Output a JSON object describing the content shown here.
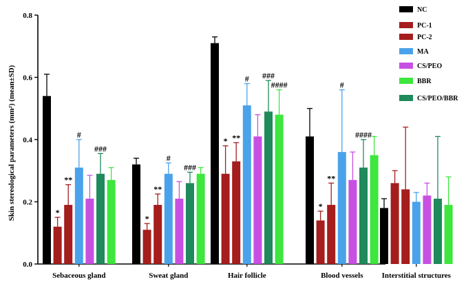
{
  "chart_data": {
    "type": "bar",
    "title": "",
    "xlabel": "",
    "ylabel": "Skin stereological parameters (mm²) (mean±SD)",
    "ylim": [
      0,
      0.8
    ],
    "yticks": [
      "0.0",
      "0.2",
      "0.4",
      "0.6",
      "0.8"
    ],
    "categories": [
      "Sebaceous gland",
      "Sweat gland",
      "Hair follicle",
      "Blood vessels",
      "Interstitial structures"
    ],
    "series": [
      {
        "name": "NC",
        "color": "#000000",
        "values": [
          0.54,
          0.32,
          0.71,
          0.41,
          0.18
        ],
        "errors": [
          0.07,
          0.02,
          0.02,
          0.09,
          0.03
        ],
        "annotations": [
          "",
          "",
          "",
          "",
          ""
        ]
      },
      {
        "name": "PC-1",
        "color": "#a51d1d",
        "values": [
          0.12,
          0.11,
          0.29,
          0.14,
          0.26
        ],
        "errors": [
          0.03,
          0.02,
          0.09,
          0.03,
          0.04
        ],
        "annotations": [
          "*",
          "*",
          "*",
          "*",
          ""
        ]
      },
      {
        "name": "PC-2",
        "color": "#a51d1d",
        "values": [
          0.19,
          0.19,
          0.33,
          0.19,
          0.24
        ],
        "errors": [
          0.065,
          0.035,
          0.06,
          0.07,
          0.2
        ],
        "annotations": [
          "**",
          "**",
          "**",
          "**",
          ""
        ]
      },
      {
        "name": "MA",
        "color": "#4aa3ea",
        "values": [
          0.31,
          0.29,
          0.51,
          0.36,
          0.2
        ],
        "errors": [
          0.09,
          0.035,
          0.07,
          0.2,
          0.03
        ],
        "annotations": [
          "#",
          "#",
          "#",
          "#",
          ""
        ]
      },
      {
        "name": "CS/PEO",
        "color": "#c750e3",
        "values": [
          0.21,
          0.21,
          0.41,
          0.27,
          0.22
        ],
        "errors": [
          0.075,
          0.055,
          0.07,
          0.09,
          0.04
        ],
        "annotations": [
          "",
          "",
          "",
          "",
          ""
        ]
      },
      {
        "name": "BBR",
        "color": "#3ee63e",
        "values": [
          0.27,
          0.29,
          0.48,
          0.35,
          0.19
        ],
        "errors": [
          0.04,
          0.02,
          0.08,
          0.06,
          0.09
        ],
        "annotations": [
          "",
          "",
          "",
          "",
          ""
        ]
      },
      {
        "name": "CS/PEO/BBR",
        "color": "#1f8a5c",
        "values": [
          0.29,
          0.26,
          0.49,
          0.31,
          0.21
        ],
        "errors": [
          0.065,
          0.035,
          0.1,
          0.09,
          0.2
        ],
        "annotations": [
          "###",
          "###",
          "###",
          "####",
          ""
        ]
      }
    ],
    "bar_order": [
      "NC",
      "PC-1",
      "PC-2",
      "MA",
      "CS/PEO",
      "CS/PEO/BBR",
      "BBR"
    ],
    "extra_annotations": [
      {
        "category": 2,
        "series": "BBR",
        "text": "####"
      }
    ],
    "legend_position": "top-right",
    "grid": false
  }
}
